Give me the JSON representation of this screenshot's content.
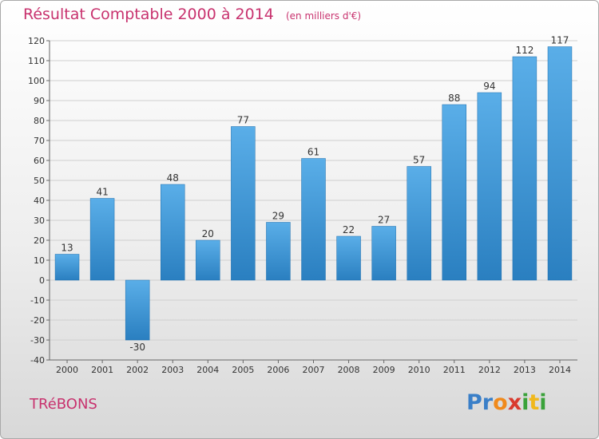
{
  "header": {
    "title": "Résultat Comptable 2000 à 2014",
    "subtitle": "(en milliers d'€)"
  },
  "footer": {
    "commune": "TRéBONS",
    "logo": {
      "letters": [
        "P",
        "r",
        "o",
        "x",
        "i",
        "t",
        "i"
      ],
      "colors": [
        "#3a7fc8",
        "#3a7fc8",
        "#f08a1c",
        "#d93a2e",
        "#3aa23a",
        "#f0b81c",
        "#3aa23a"
      ]
    }
  },
  "colors": {
    "bar_light": "#5aaee8",
    "bar_dark": "#2a7fc0",
    "grid": "#cfcfcf",
    "title": "#c8326e"
  },
  "chart_data": {
    "type": "bar",
    "title": "Résultat Comptable 2000 à 2014",
    "subtitle": "(en milliers d'€)",
    "categories": [
      "2000",
      "2001",
      "2002",
      "2003",
      "2004",
      "2005",
      "2006",
      "2007",
      "2008",
      "2009",
      "2010",
      "2011",
      "2012",
      "2013",
      "2014"
    ],
    "values": [
      13,
      41,
      -30,
      48,
      20,
      77,
      29,
      61,
      22,
      27,
      57,
      88,
      94,
      112,
      117
    ],
    "ylim": [
      -40,
      120
    ],
    "yticks": [
      -40,
      -30,
      -20,
      -10,
      0,
      10,
      20,
      30,
      40,
      50,
      60,
      70,
      80,
      90,
      100,
      110,
      120
    ],
    "grid": true,
    "xlabel": "",
    "ylabel": ""
  }
}
